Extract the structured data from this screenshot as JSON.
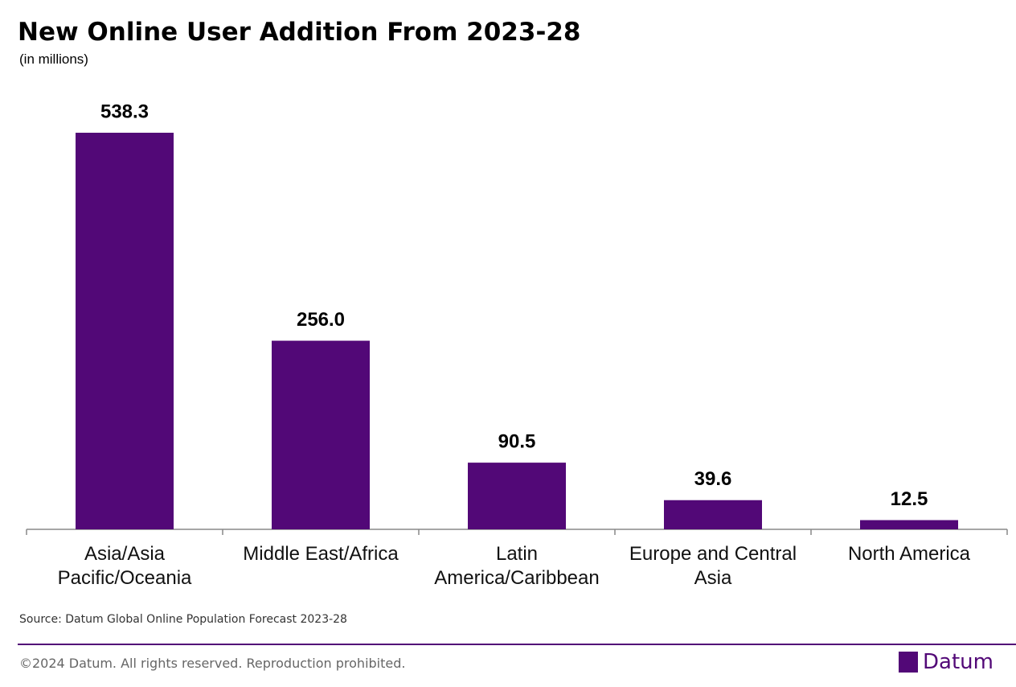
{
  "chart_data": {
    "type": "bar",
    "title": "New Online User Addition From 2023-28",
    "subtitle": "(in millions)",
    "categories": [
      "Asia/Asia Pacific/Oceania",
      "Middle East/Africa",
      "Latin America/Caribbean",
      "Europe and Central Asia",
      "North America"
    ],
    "values": [
      538.3,
      256.0,
      90.5,
      39.6,
      12.5
    ],
    "value_labels": [
      "538.3",
      "256.0",
      "90.5",
      "39.6",
      "12.5"
    ],
    "color": "#520877",
    "source": "Source: Datum Global Online Population Forecast 2023-28"
  },
  "footer": {
    "copyright": "©2024 Datum. All rights reserved. Reproduction prohibited.",
    "brand": "Datum"
  }
}
